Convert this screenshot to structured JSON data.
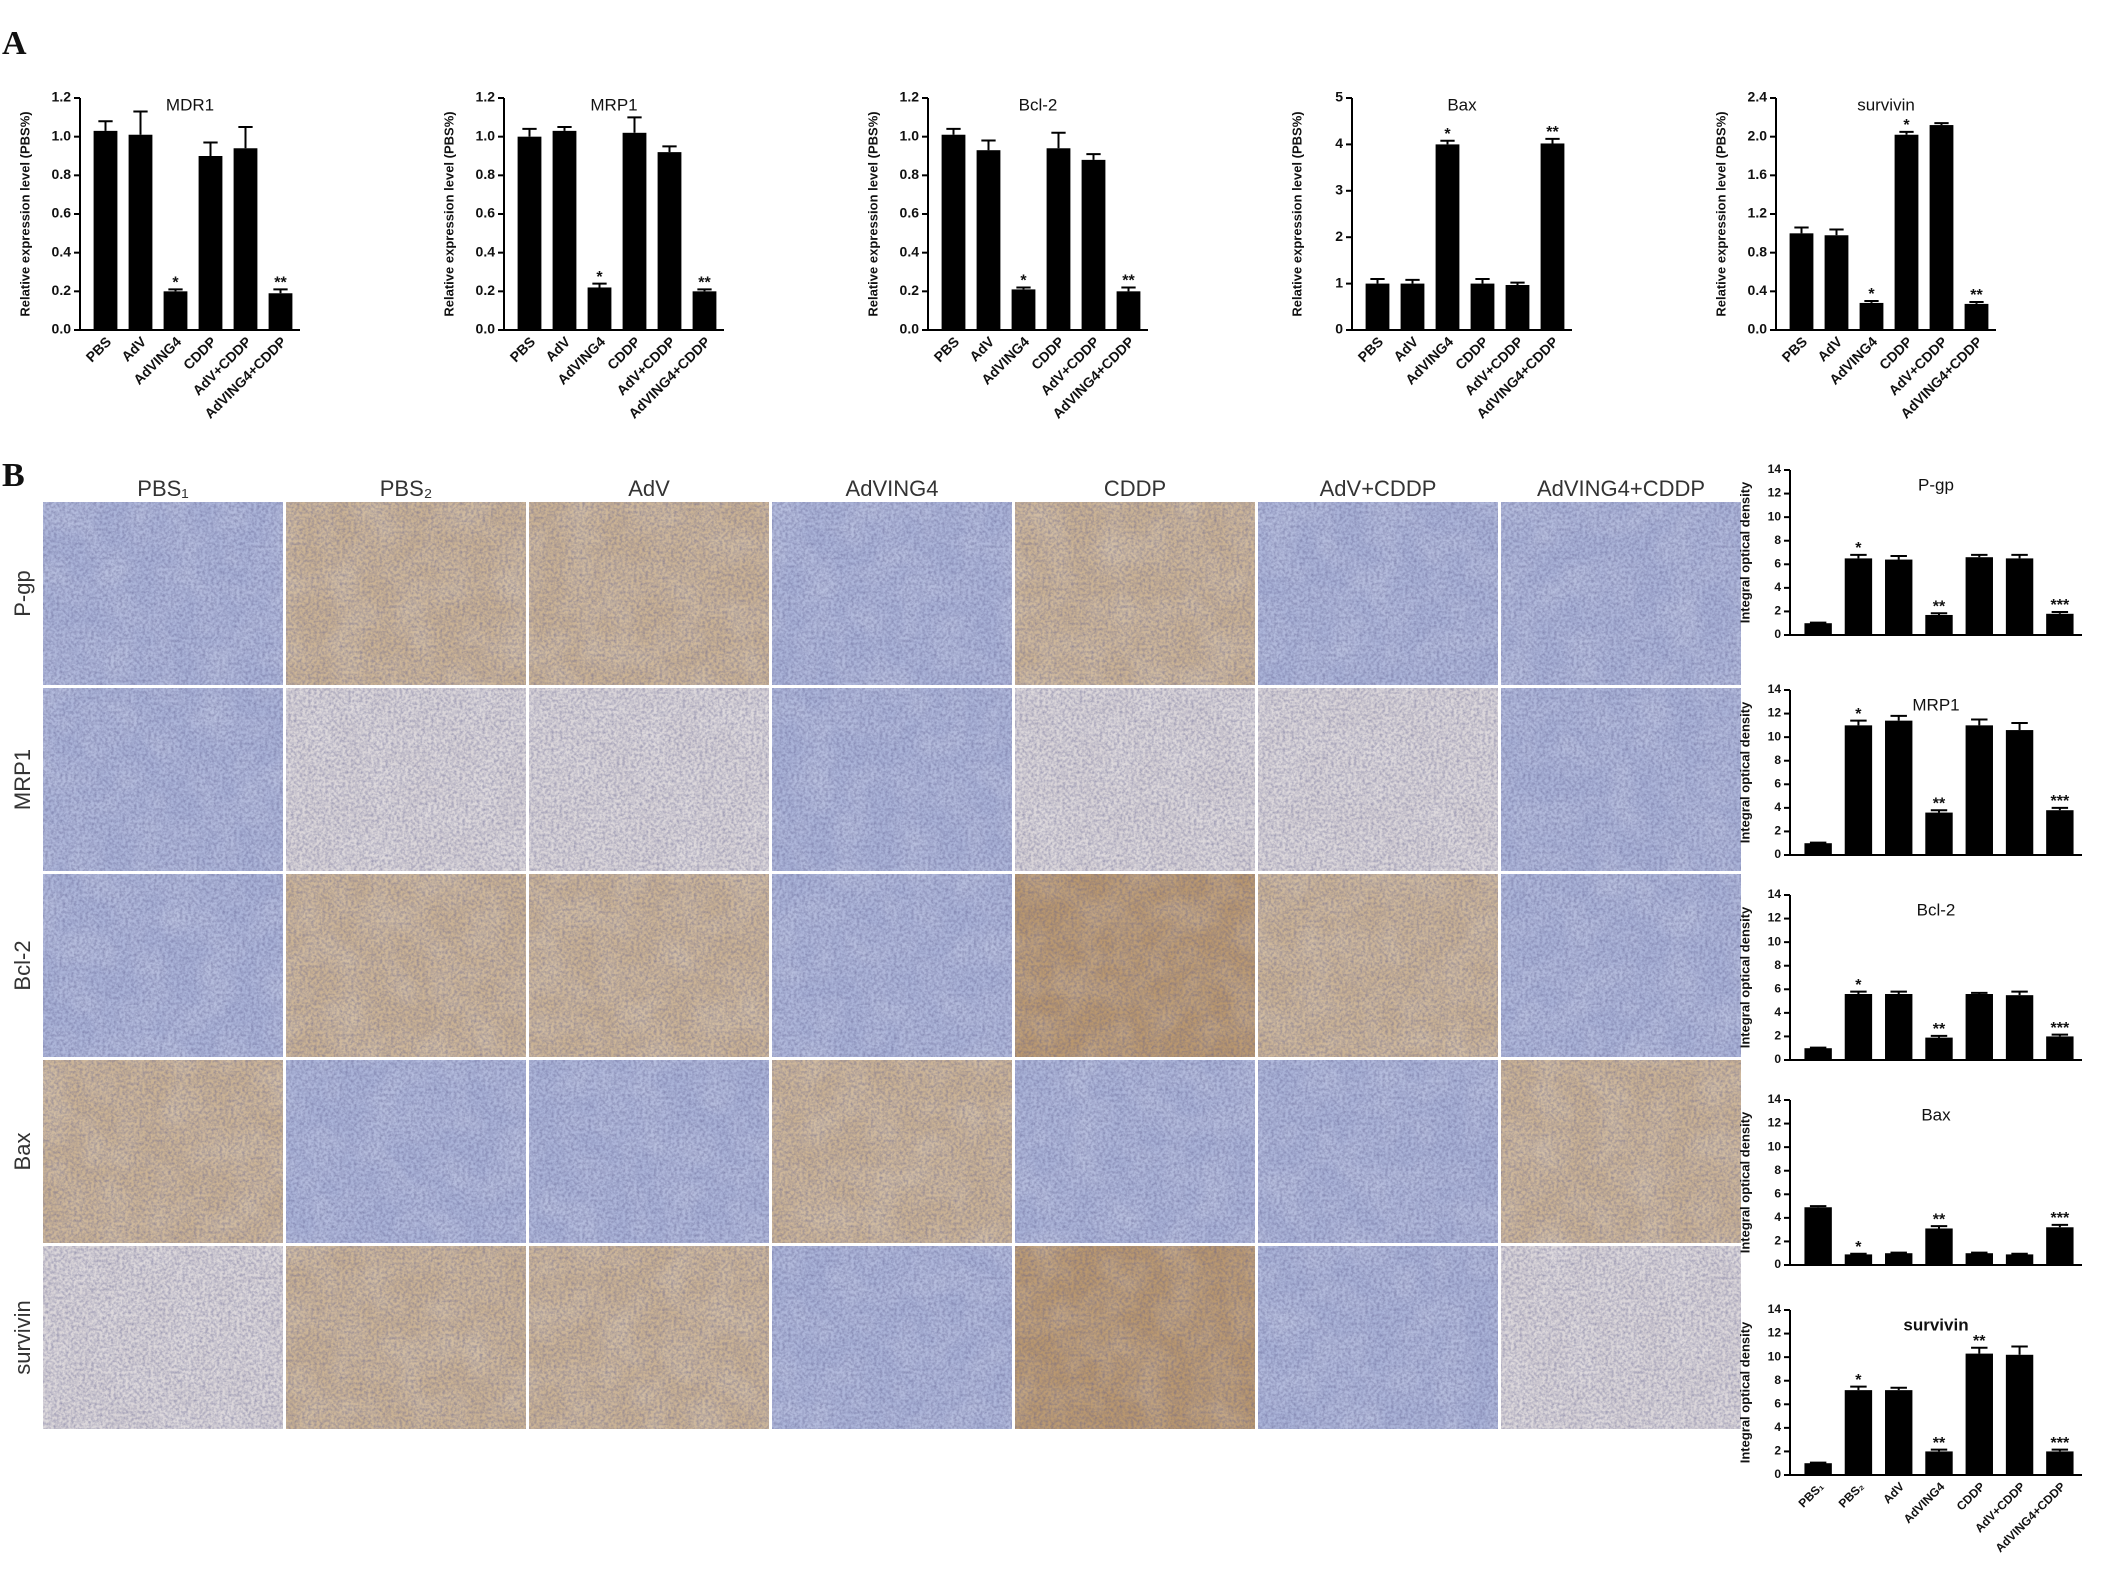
{
  "panel_labels": [
    "A",
    "B"
  ],
  "micrographs": {
    "columns": [
      "PBS₁",
      "PBS₂",
      "AdV",
      "AdVING4",
      "CDDP",
      "AdV+CDDP",
      "AdVING4+CDDP"
    ],
    "rows": [
      "P-gp",
      "MRP1",
      "Bcl-2",
      "Bax",
      "survivin"
    ]
  },
  "chart_data": [
    {
      "type": "bar",
      "title": "MDR1",
      "ylabel": "Relative expression level (PBS%)",
      "categories": [
        "PBS",
        "AdV",
        "AdVING4",
        "CDDP",
        "AdV+CDDP",
        "AdVING4+CDDP"
      ],
      "values": [
        1.03,
        1.01,
        0.2,
        0.9,
        0.94,
        0.19
      ],
      "errors": [
        0.05,
        0.12,
        0.01,
        0.07,
        0.11,
        0.02
      ],
      "stars": [
        null,
        null,
        "*",
        null,
        null,
        "**"
      ],
      "color": "#000000",
      "ylim": [
        0,
        1.2
      ],
      "yticks": [
        {
          "value": 0,
          "label": "0.0"
        },
        {
          "value": 0.2,
          "label": "0.2"
        },
        {
          "value": 0.4,
          "label": "0.4"
        },
        {
          "value": 0.6,
          "label": "0.6"
        },
        {
          "value": 0.8,
          "label": "0.8"
        },
        {
          "value": 1,
          "label": "1.0"
        },
        {
          "value": 1.2,
          "label": "1.2"
        }
      ]
    },
    {
      "type": "bar",
      "title": "MRP1",
      "ylabel": "Relative expression level (PBS%)",
      "categories": [
        "PBS",
        "AdV",
        "AdVING4",
        "CDDP",
        "AdV+CDDP",
        "AdVING4+CDDP"
      ],
      "values": [
        1.0,
        1.03,
        0.22,
        1.02,
        0.92,
        0.2
      ],
      "errors": [
        0.04,
        0.02,
        0.02,
        0.08,
        0.03,
        0.01
      ],
      "stars": [
        null,
        null,
        "*",
        null,
        null,
        "**"
      ],
      "color": "#000000",
      "ylim": [
        0,
        1.2
      ],
      "yticks": [
        {
          "value": 0,
          "label": "0.0"
        },
        {
          "value": 0.2,
          "label": "0.2"
        },
        {
          "value": 0.4,
          "label": "0.4"
        },
        {
          "value": 0.6,
          "label": "0.6"
        },
        {
          "value": 0.8,
          "label": "0.8"
        },
        {
          "value": 1,
          "label": "1.0"
        },
        {
          "value": 1.2,
          "label": "1.2"
        }
      ]
    },
    {
      "type": "bar",
      "title": "Bcl-2",
      "ylabel": "Relative expression level (PBS%)",
      "categories": [
        "PBS",
        "AdV",
        "AdVING4",
        "CDDP",
        "AdV+CDDP",
        "AdVING4+CDDP"
      ],
      "values": [
        1.01,
        0.93,
        0.21,
        0.94,
        0.88,
        0.2
      ],
      "errors": [
        0.03,
        0.05,
        0.01,
        0.08,
        0.03,
        0.02
      ],
      "stars": [
        null,
        null,
        "*",
        null,
        null,
        "**"
      ],
      "color": "#000000",
      "ylim": [
        0,
        1.2
      ],
      "yticks": [
        {
          "value": 0,
          "label": "0.0"
        },
        {
          "value": 0.2,
          "label": "0.2"
        },
        {
          "value": 0.4,
          "label": "0.4"
        },
        {
          "value": 0.6,
          "label": "0.6"
        },
        {
          "value": 0.8,
          "label": "0.8"
        },
        {
          "value": 1,
          "label": "1.0"
        },
        {
          "value": 1.2,
          "label": "1.2"
        }
      ]
    },
    {
      "type": "bar",
      "title": "Bax",
      "ylabel": "Relative expression level (PBS%)",
      "categories": [
        "PBS",
        "AdV",
        "AdVING4",
        "CDDP",
        "AdV+CDDP",
        "AdVING4+CDDP"
      ],
      "values": [
        1.0,
        1.0,
        4.0,
        1.0,
        0.97,
        4.02
      ],
      "errors": [
        0.1,
        0.08,
        0.08,
        0.1,
        0.05,
        0.1
      ],
      "stars": [
        null,
        null,
        "*",
        null,
        null,
        "**"
      ],
      "color": "#000000",
      "ylim": [
        0,
        5
      ],
      "yticks": [
        0,
        1,
        2,
        3,
        4,
        5
      ]
    },
    {
      "type": "bar",
      "title": "survivin",
      "ylabel": "Relative expression level (PBS%)",
      "categories": [
        "PBS",
        "AdV",
        "AdVING4",
        "CDDP",
        "AdV+CDDP",
        "AdVING4+CDDP"
      ],
      "values": [
        1.0,
        0.98,
        0.28,
        2.02,
        2.12,
        0.27
      ],
      "errors": [
        0.06,
        0.06,
        0.02,
        0.03,
        0.02,
        0.02
      ],
      "stars": [
        null,
        null,
        "*",
        "*",
        null,
        "**"
      ],
      "color": "#000000",
      "ylim": [
        0,
        2.4
      ],
      "yticks": [
        {
          "value": 0,
          "label": "0.0"
        },
        {
          "value": 0.4,
          "label": "0.4"
        },
        {
          "value": 0.8,
          "label": "0.8"
        },
        {
          "value": 1.2,
          "label": "1.2"
        },
        {
          "value": 1.6,
          "label": "1.6"
        },
        {
          "value": 2,
          "label": "2.0"
        },
        {
          "value": 2.4,
          "label": "2.4"
        }
      ]
    },
    {
      "type": "bar",
      "title": "P-gp",
      "ylabel": "Integral optical density",
      "values": [
        1.0,
        6.5,
        6.4,
        1.7,
        6.6,
        6.5,
        1.8
      ],
      "errors": [
        0.05,
        0.3,
        0.3,
        0.15,
        0.2,
        0.3,
        0.15
      ],
      "stars": [
        null,
        "*",
        null,
        "**",
        null,
        null,
        "***"
      ],
      "color": "#000000",
      "ylim": [
        0,
        14
      ],
      "yticks": [
        0,
        2,
        4,
        6,
        8,
        10,
        12,
        14
      ]
    },
    {
      "type": "bar",
      "title": "MRP1",
      "ylabel": "Integral optical density",
      "values": [
        1.0,
        11.0,
        11.4,
        3.6,
        11.0,
        10.6,
        3.8
      ],
      "errors": [
        0.05,
        0.4,
        0.4,
        0.2,
        0.5,
        0.6,
        0.2
      ],
      "stars": [
        null,
        "*",
        null,
        "**",
        null,
        null,
        "***"
      ],
      "color": "#000000",
      "ylim": [
        0,
        14
      ],
      "yticks": [
        0,
        2,
        4,
        6,
        8,
        10,
        12,
        14
      ]
    },
    {
      "type": "bar",
      "title": "Bcl-2",
      "ylabel": "Integral optical density",
      "values": [
        1.0,
        5.6,
        5.6,
        1.9,
        5.6,
        5.5,
        2.0
      ],
      "errors": [
        0.05,
        0.2,
        0.2,
        0.15,
        0.1,
        0.3,
        0.15
      ],
      "stars": [
        null,
        "*",
        null,
        "**",
        null,
        null,
        "***"
      ],
      "color": "#000000",
      "ylim": [
        0,
        14
      ],
      "yticks": [
        0,
        2,
        4,
        6,
        8,
        10,
        12,
        14
      ]
    },
    {
      "type": "bar",
      "title": "Bax",
      "ylabel": "Integral optical density",
      "values": [
        4.9,
        0.9,
        1.0,
        3.1,
        1.0,
        0.9,
        3.2
      ],
      "errors": [
        0.1,
        0.05,
        0.05,
        0.2,
        0.05,
        0.05,
        0.2
      ],
      "stars": [
        null,
        "*",
        null,
        "**",
        null,
        null,
        "***"
      ],
      "color": "#000000",
      "ylim": [
        0,
        14
      ],
      "yticks": [
        0,
        2,
        4,
        6,
        8,
        10,
        12,
        14
      ]
    },
    {
      "type": "bar",
      "title": "survivin",
      "ylabel": "Integral optical density",
      "categories": [
        "PBS₁",
        "PBS₂",
        "AdV",
        "AdVING4",
        "CDDP",
        "AdV+CDDP",
        "AdVING4+CDDP"
      ],
      "values": [
        1.0,
        7.2,
        7.2,
        2.0,
        10.3,
        10.2,
        2.0
      ],
      "errors": [
        0.05,
        0.3,
        0.2,
        0.15,
        0.5,
        0.7,
        0.15
      ],
      "stars": [
        null,
        "*",
        null,
        "**",
        "**",
        null,
        "***"
      ],
      "color": "#000000",
      "ylim": [
        0,
        14
      ],
      "yticks": [
        0,
        2,
        4,
        6,
        8,
        10,
        12,
        14
      ]
    }
  ]
}
